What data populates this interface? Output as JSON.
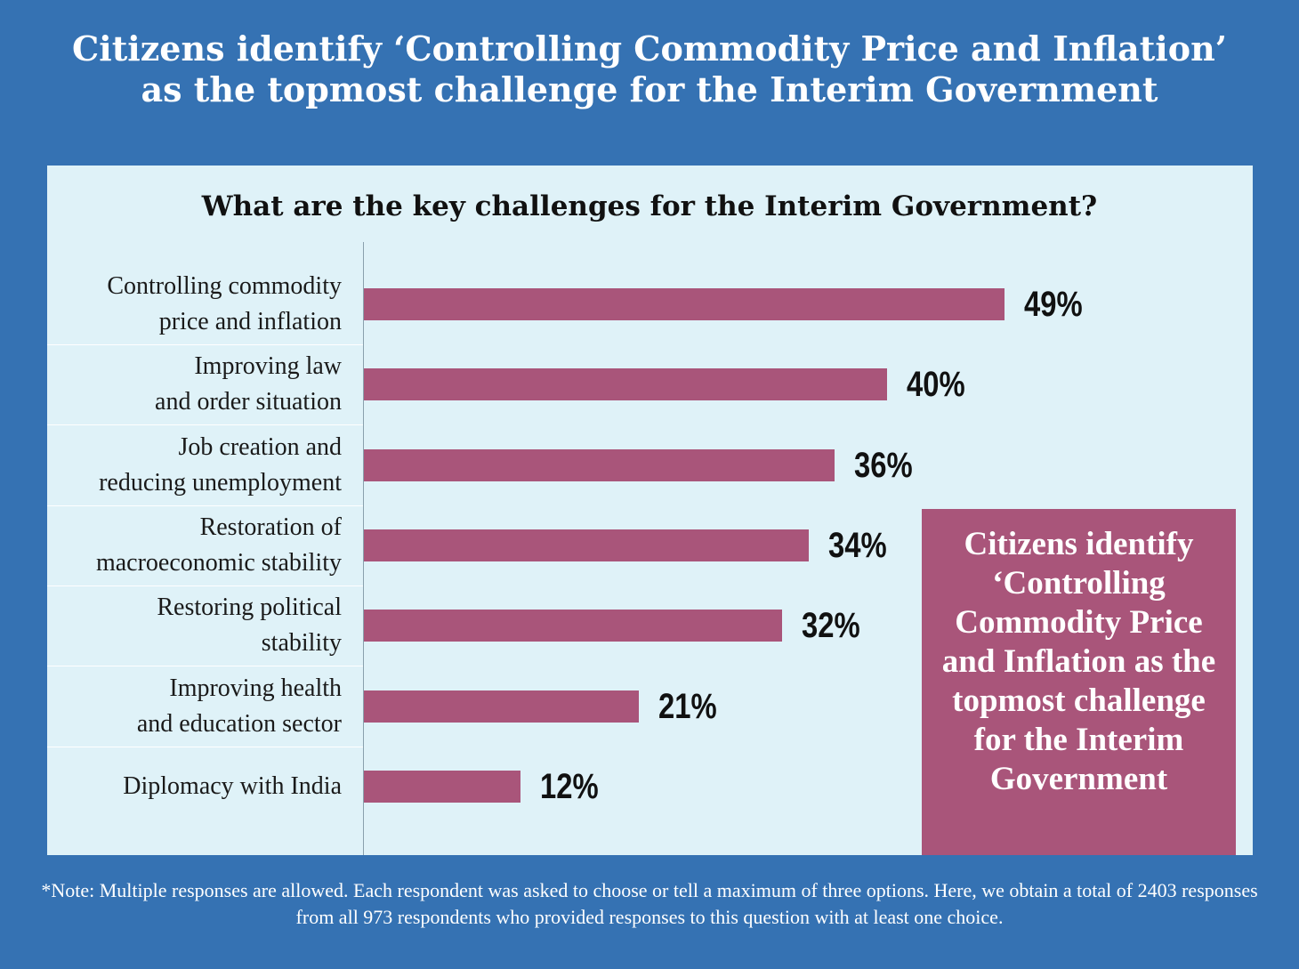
{
  "headline": "Citizens identify ‘Controlling Commodity Price and Inflation’\nas the topmost challenge for the Interim Government",
  "callout": "Citizens identify ‘Controlling Commodity Price and Inflation as the topmost challenge for the Interim Government",
  "note": "*Note: Multiple responses are allowed. Each respondent was asked to choose or tell a maximum of three options. Here, we obtain a total of 2403 responses from all 973 respondents who provided responses to this question with at least one choice.",
  "colors": {
    "background": "#3572b3",
    "panel": "#dff2f8",
    "bar": "#a9557a"
  },
  "chart_data": {
    "type": "bar",
    "orientation": "horizontal",
    "title": "What are the key challenges for the Interim Government?",
    "categories": [
      "Controlling commodity\nprice and inflation",
      "Improving law\nand order situation",
      "Job creation and\nreducing unemployment",
      "Restoration of\nmacroeconomic stability",
      "Restoring political\nstability",
      "Improving health\nand education sector",
      "Diplomacy with India"
    ],
    "values": [
      49,
      40,
      36,
      34,
      32,
      21,
      12
    ],
    "value_labels": [
      "49%",
      "40%",
      "36%",
      "34%",
      "32%",
      "21%",
      "12%"
    ],
    "unit": "%",
    "xlim": [
      0,
      100
    ],
    "grid": false,
    "legend": "none"
  }
}
